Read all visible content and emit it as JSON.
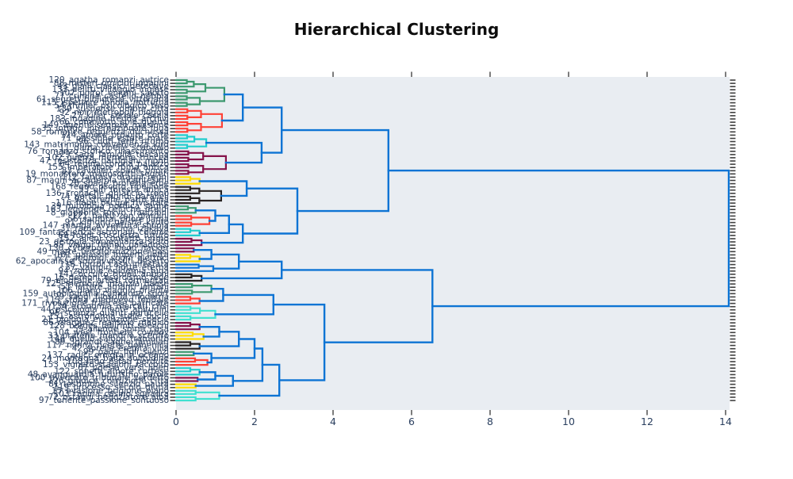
{
  "title": "Hierarchical Clustering",
  "chart_data": {
    "type": "dendrogram",
    "title": "Hierarchical Clustering",
    "orientation": "horizontal",
    "xlabel": "",
    "ylabel": "",
    "xlim": [
      0,
      14.1
    ],
    "x_ticks": [
      0,
      2,
      4,
      6,
      8,
      10,
      12,
      14
    ],
    "grid": false,
    "legend": "none",
    "colors": {
      "plot_bg": "#e9edf2",
      "link_blue": "#0d74d4",
      "axis_text": "#2a3f5f",
      "leaf_tick": "#3f3f3f",
      "palette": {
        "green": "#3d9970",
        "red": "#ff4136",
        "cyan": "#23cdcd",
        "magenta": "#85144b",
        "yellow": "#ffdc00",
        "black": "#282323",
        "blue": "#0d74d4",
        "turquoise": "#40e0d0"
      }
    },
    "clusters": [
      {
        "size": 9,
        "color": "green",
        "height": 1.23
      },
      {
        "size": 8,
        "color": "red",
        "height": 1.17
      },
      {
        "size": 5,
        "color": "cyan",
        "height": 0.77
      },
      {
        "size": 8,
        "color": "magenta",
        "height": 1.27
      },
      {
        "size": 3,
        "color": "yellow",
        "height": 0.6
      },
      {
        "size": 6,
        "color": "black",
        "height": 1.15
      },
      {
        "size": 3,
        "color": "green",
        "height": 0.5
      },
      {
        "size": 4,
        "color": "red",
        "height": 0.85
      },
      {
        "size": 3,
        "color": "cyan",
        "height": 0.6
      },
      {
        "size": 3,
        "color": "magenta",
        "height": 0.65
      },
      {
        "size": 2,
        "color": "magenta",
        "height": 0.45
      },
      {
        "size": 3,
        "color": "yellow",
        "height": 0.6
      },
      {
        "size": 3,
        "color": "blue",
        "height": 0.95
      },
      {
        "size": 3,
        "color": "black",
        "height": 0.65
      },
      {
        "size": 4,
        "color": "green",
        "height": 0.9
      },
      {
        "size": 3,
        "color": "red",
        "height": 0.6
      },
      {
        "size": 5,
        "color": "turquoise",
        "height": 1.0
      },
      {
        "size": 3,
        "color": "magenta",
        "height": 0.6
      },
      {
        "size": 3,
        "color": "yellow",
        "height": 0.7
      },
      {
        "size": 3,
        "color": "black",
        "height": 0.6
      },
      {
        "size": 2,
        "color": "green",
        "height": 0.45
      },
      {
        "size": 3,
        "color": "red",
        "height": 0.8
      },
      {
        "size": 3,
        "color": "cyan",
        "height": 0.6
      },
      {
        "size": 2,
        "color": "magenta",
        "height": 0.55
      },
      {
        "size": 2,
        "color": "yellow",
        "height": 0.5
      },
      {
        "size": 4,
        "color": "turquoise",
        "height": 1.1
      }
    ],
    "merges": [
      {
        "id": "m0",
        "a": "c0",
        "b": "c1",
        "h": 1.7
      },
      {
        "id": "m1",
        "a": "c2",
        "b": "c3",
        "h": 2.18
      },
      {
        "id": "m2",
        "a": "m0",
        "b": "m1",
        "h": 2.69
      },
      {
        "id": "m3",
        "a": "c4",
        "b": "c5",
        "h": 1.8
      },
      {
        "id": "m4",
        "a": "c6",
        "b": "c7",
        "h": 1.0
      },
      {
        "id": "m5",
        "a": "m4",
        "b": "c8",
        "h": 1.35
      },
      {
        "id": "m6",
        "a": "m5",
        "b": "c9",
        "h": 1.7
      },
      {
        "id": "m7",
        "a": "m3",
        "b": "m6",
        "h": 3.09
      },
      {
        "id": "m8",
        "a": "m2",
        "b": "m7",
        "h": 5.41
      },
      {
        "id": "m9",
        "a": "c10",
        "b": "c11",
        "h": 0.9
      },
      {
        "id": "m10",
        "a": "m9",
        "b": "c12",
        "h": 1.6
      },
      {
        "id": "m11",
        "a": "m10",
        "b": "c13",
        "h": 2.69
      },
      {
        "id": "m12",
        "a": "c14",
        "b": "c15",
        "h": 1.2
      },
      {
        "id": "m13",
        "a": "m12",
        "b": "c16",
        "h": 2.48
      },
      {
        "id": "m14",
        "a": "c17",
        "b": "c18",
        "h": 1.1
      },
      {
        "id": "m15",
        "a": "m14",
        "b": "c19",
        "h": 1.6
      },
      {
        "id": "m16",
        "a": "c20",
        "b": "c21",
        "h": 0.9
      },
      {
        "id": "m17",
        "a": "m15",
        "b": "m16",
        "h": 2.0
      },
      {
        "id": "m18",
        "a": "c22",
        "b": "c23",
        "h": 1.0
      },
      {
        "id": "m19",
        "a": "m18",
        "b": "c24",
        "h": 1.45
      },
      {
        "id": "m20",
        "a": "m17",
        "b": "m19",
        "h": 2.2
      },
      {
        "id": "m21",
        "a": "m20",
        "b": "c25",
        "h": 2.63
      },
      {
        "id": "m22",
        "a": "m13",
        "b": "m21",
        "h": 3.78
      },
      {
        "id": "m23",
        "a": "m11",
        "b": "m22",
        "h": 6.53
      },
      {
        "id": "m24",
        "a": "m8",
        "b": "m23",
        "h": 14.08
      }
    ],
    "leaves": [
      "120_agatha_romanzi_autrice",
      "88_misteri_omicidi_indagini",
      "43_gialli_classici_detective",
      "132_delitti_villaggio_inglese",
      "107_poirot_enigmi_salotto",
      "77_crimine_castello_nebbia",
      "61_segreti_biblioteca_vittoriana",
      "115_ispettore_londra_notturna",
      "54_thriller_psicologico_teso",
      "139_suspense_ombre_citta",
      "92_noir_metropoli_pioggia",
      "27_killer_seriale_caccia",
      "183_indagine_fredda_archivi",
      "66_complotto_spie_guerra",
      "149_agente_segreto_missione",
      "35_intrigo_internazionale_fuga",
      "58_romance_reggenza_duchessa",
      "124_amore_proibito_corte",
      "71_passione_estate_mare",
      "96_cuori_feriti_ritorno",
      "143_matrimonio_convenienza_lord",
      "11_dama_ribelle_scandalo",
      "76_romanzo_storico_rinascimento",
      "129_saga_famiglia_toscana",
      "102_guerra_memorie_trincea",
      "47_resistenza_partigiani_monti",
      "64_regina_corona_palazzo",
      "155_imperatore_roma_antica",
      "83_cavalieri_spade_onore",
      "19_monastero_manoscritti_segreti",
      "112_fantasy_draghi_regni",
      "87_maghi_accademia_incantesimi",
      "26_spade_profezia_eroe",
      "168_regno_oscuro_ribellione",
      "53_elfi_foresta_antica",
      "136_cronache_ghiaccio_trono",
      "74_portali_mondi_paralleli",
      "98_streghe_patto_luna",
      "116_fiabe_oscure_rivisitate",
      "39_mitologia_nordica_saghe",
      "163_leggende_celtiche_druidi",
      "8_giappone_tokyo_tradizioni",
      "121_haiku_zen_giardini",
      "56_samurai_onore_lama",
      "91_kimono_geisha_kyoto",
      "147_manga_avventura_scuola",
      "31_ramen_cucina_izakaya",
      "109_fantascienza_astronavi_colonie",
      "68_robot_coscienza_futuro",
      "152_alieni_contatto_primo",
      "23_distopia_sorveglianza_stato",
      "85_viaggi_tempo_paradossi",
      "130_cyberpunk_neon_hacker",
      "49_marte_terraformazione_basi",
      "101_galassie_impero_flotta",
      "177_androidi_sogni_elettrici",
      "62_apocalisse_sopravvissuti_deserto",
      "118_horror_casa_infestata",
      "37_vampiri_notte_eterna",
      "94_zombie_epidemia_fuga",
      "141_occulto_rituali_antichi",
      "16_demoni_esorcismo_fede",
      "79_biografie_artisti_tormentati",
      "125_memorie_infanzia_paese",
      "51_lettere_amanti_lontani",
      "106_diario_viaggio_oriente",
      "159_autobiografia_campione_sport",
      "29_saggi_filosofia_moderna",
      "113_storia_medioevo_feudale",
      "171_rivoluzione_francese_barricate",
      "134_economia_mercati_crisi",
      "44_psicologia_mente_abitudini",
      "95_scienza_quanti_particelle",
      "151_astronomia_stelle_buchi",
      "21_biologia_evoluzione_specie",
      "86_marquez_realismo_magico",
      "128_borges_labirinti_specchi",
      "59_allende_spiriti_casa",
      "104_west_frontiera_cowboy",
      "33_praterie_mandrie_sceriffo",
      "146_duello_saloon_tramonto",
      "89_3grandi_saghe_familiari",
      "117_nonna_ricette_domenica",
      "42_sorelle_eredita_villa",
      "99_padri_figli_silenzi",
      "137_radici_emigranti_oceano",
      "24_montagna_baita_solitudine",
      "108_lago_estati_perdute",
      "153_vigneto_stagioni_raccolto",
      "67_poesia_versi_liberi",
      "122_sonetti_amore_cortese",
      "48_avanguardia_futurismo_parole",
      "100_avvocato_tribunale_verdetto",
      "126_giudice_corruzione_citta",
      "81_testimone_silenzio_paura",
      "119_processo_secolo_giuria",
      "15_evasione_prigione_piano",
      "103_rapina_casino_squadra",
      "72_ostaggi_negoziatore_alba",
      "97_tenente_passione_sontuoso"
    ]
  }
}
